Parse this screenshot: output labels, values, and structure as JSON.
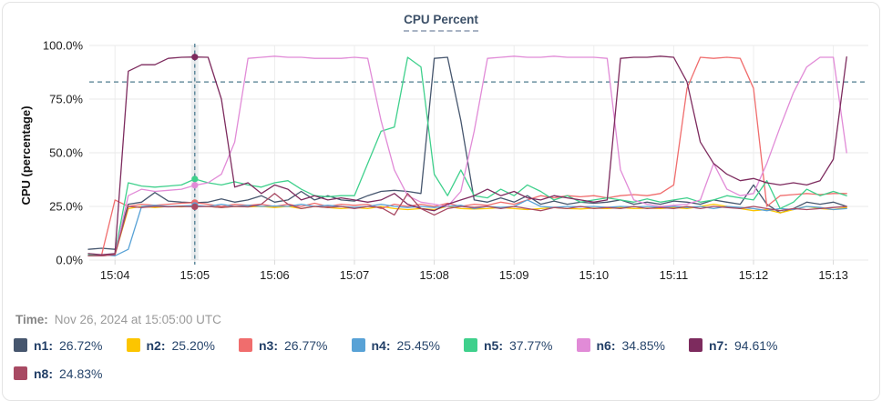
{
  "chart": {
    "title": "CPU Percent"
  },
  "time_display": {
    "label": "Time:",
    "value": "Nov 26, 2024 at 15:05:00 UTC"
  },
  "chart_data": {
    "type": "line",
    "title": "CPU Percent",
    "xlabel": "",
    "ylabel": "CPU (percentage)",
    "ylim": [
      0,
      100
    ],
    "y_tick_values": [
      0,
      25,
      50,
      75,
      100
    ],
    "y_tick_labels": [
      "0.0%",
      "25.0%",
      "50.0%",
      "75.0%",
      "100.0%"
    ],
    "x_tick_labels": [
      "15:04",
      "15:05",
      "15:06",
      "15:07",
      "15:08",
      "15:09",
      "15:10",
      "15:11",
      "15:12",
      "15:13"
    ],
    "x_start_time": "15:03:40",
    "x_interval_seconds": 10,
    "grid": true,
    "legend_position": "bottom",
    "threshold_line": {
      "value": 83,
      "style": "dashed",
      "color": "#4e7b8d"
    },
    "crosshair": {
      "time": "15:05:00",
      "index": 8,
      "color": "#40738a"
    },
    "series": [
      {
        "name": "n1",
        "color": "#46566e",
        "legend_value": "26.72%",
        "values": [
          5,
          5.5,
          5,
          26,
          27,
          31.5,
          27.5,
          27,
          26.72,
          27,
          28.5,
          27,
          28,
          30,
          27,
          28,
          32,
          28,
          30,
          28,
          27.5,
          30,
          32,
          32.5,
          32,
          31,
          94,
          94.5,
          65,
          28,
          27,
          29,
          27,
          30,
          26,
          27.5,
          26,
          27,
          26.5,
          27,
          28,
          26,
          27,
          26,
          27.5,
          27,
          26,
          28,
          27,
          26,
          35,
          26,
          22,
          24,
          27,
          26,
          27,
          25
        ]
      },
      {
        "name": "n2",
        "color": "#fcc500",
        "legend_value": "25.20%",
        "values": [
          2,
          2,
          2.5,
          24,
          25,
          24.5,
          25,
          24.8,
          25.2,
          25,
          24.5,
          25,
          24.8,
          25,
          24.5,
          25,
          24,
          25,
          24.5,
          24,
          24.5,
          24,
          25,
          24,
          23.5,
          24,
          23.5,
          25,
          24,
          23.8,
          24,
          24.5,
          24,
          23.5,
          24,
          24.5,
          24,
          23.8,
          24.2,
          24,
          24.5,
          24,
          24.2,
          24,
          24.5,
          24,
          25,
          26,
          25,
          24,
          23,
          23.5,
          22,
          23.5,
          25,
          24,
          23.5,
          24.5
        ]
      },
      {
        "name": "n3",
        "color": "#f06d6d",
        "legend_value": "26.77%",
        "values": [
          2,
          2.5,
          28,
          25,
          26,
          25.5,
          26,
          26.5,
          26.77,
          26,
          25,
          26,
          25.5,
          26,
          25,
          26,
          25,
          26.5,
          25,
          26,
          25.5,
          26,
          24,
          26,
          25,
          26,
          25,
          26.5,
          25,
          26,
          25.5,
          27,
          26,
          28,
          30,
          29,
          30,
          29.5,
          30,
          29,
          30,
          30.5,
          30,
          31,
          35,
          80,
          94.5,
          94,
          94.5,
          94,
          80,
          25,
          30,
          30.5,
          31,
          30.5,
          31,
          31
        ]
      },
      {
        "name": "n4",
        "color": "#58a2d6",
        "legend_value": "25.45%",
        "values": [
          2,
          2.5,
          2,
          5,
          25,
          25.5,
          25,
          25.2,
          25.45,
          25,
          26,
          25,
          25.5,
          25,
          25.2,
          25,
          26,
          25,
          25.5,
          25,
          24.5,
          25,
          26,
          25,
          24.5,
          25,
          24.5,
          25,
          25.5,
          24,
          25,
          24.5,
          25,
          28,
          25,
          24.5,
          25,
          24.8,
          25,
          24.5,
          25,
          24.8,
          25,
          24.5,
          25,
          24.5,
          25,
          24,
          25,
          24.5,
          24,
          23,
          24,
          23.5,
          25,
          24.5,
          23.5,
          24
        ]
      },
      {
        "name": "n5",
        "color": "#3fd08c",
        "legend_value": "37.77%",
        "values": [
          2.5,
          2,
          3,
          36,
          34.5,
          34,
          34.5,
          35,
          37.77,
          36,
          35,
          36.5,
          35,
          34,
          36,
          37,
          33,
          30,
          29.5,
          30,
          30,
          45,
          60,
          62,
          94.5,
          90,
          40,
          30,
          42,
          30,
          29,
          33,
          30,
          35,
          32,
          28,
          30,
          27,
          28,
          29,
          28,
          27,
          28.5,
          27,
          28,
          29,
          27,
          28,
          30,
          29,
          28,
          37,
          24,
          27,
          33,
          30,
          32,
          30
        ]
      },
      {
        "name": "n6",
        "color": "#e18bd7",
        "legend_value": "34.85%",
        "values": [
          2,
          2,
          2.5,
          30,
          33,
          32,
          32.5,
          33,
          34.85,
          36,
          40,
          55,
          94,
          94.5,
          95,
          94.5,
          94.5,
          94,
          94,
          94,
          94.5,
          94,
          65,
          42,
          30,
          27,
          26,
          25,
          32,
          60,
          94,
          94.5,
          95,
          94.5,
          94.5,
          95,
          94.5,
          94.5,
          94.5,
          94,
          42,
          28,
          26,
          25,
          25.5,
          26,
          28,
          45,
          33,
          30,
          31,
          45,
          62,
          78,
          90,
          94.5,
          94.5,
          50
        ]
      },
      {
        "name": "n7",
        "color": "#7d2b5e",
        "legend_value": "94.61%",
        "values": [
          3,
          2.5,
          3,
          88,
          91,
          91,
          94,
          94.5,
          94.61,
          94.5,
          75,
          34,
          36,
          31,
          35,
          33,
          28,
          30,
          28,
          29,
          28,
          27,
          28,
          31,
          26,
          24,
          23,
          26,
          28,
          30,
          33,
          30,
          32,
          29,
          28,
          30,
          29,
          28,
          27,
          28,
          94,
          94.5,
          94.5,
          95,
          94.5,
          83,
          55,
          45,
          40,
          37,
          38,
          36,
          35,
          36,
          35,
          37,
          47,
          94.6
        ]
      },
      {
        "name": "n8",
        "color": "#a84a63",
        "legend_value": "24.83%",
        "values": [
          2,
          2,
          2.5,
          25,
          24.5,
          25,
          24.8,
          25,
          24.83,
          25,
          24.5,
          25,
          24.8,
          26,
          31,
          26,
          24,
          25,
          24.5,
          25,
          24,
          25,
          24.5,
          21,
          31,
          24,
          21,
          24,
          25,
          24.5,
          25,
          24,
          25,
          24,
          23,
          24.5,
          24,
          25,
          24,
          24.5,
          24,
          25,
          24,
          24.5,
          24,
          25,
          24,
          25,
          24.5,
          24,
          25,
          24,
          23,
          24,
          23.5,
          24,
          24.5,
          25
        ]
      }
    ]
  }
}
